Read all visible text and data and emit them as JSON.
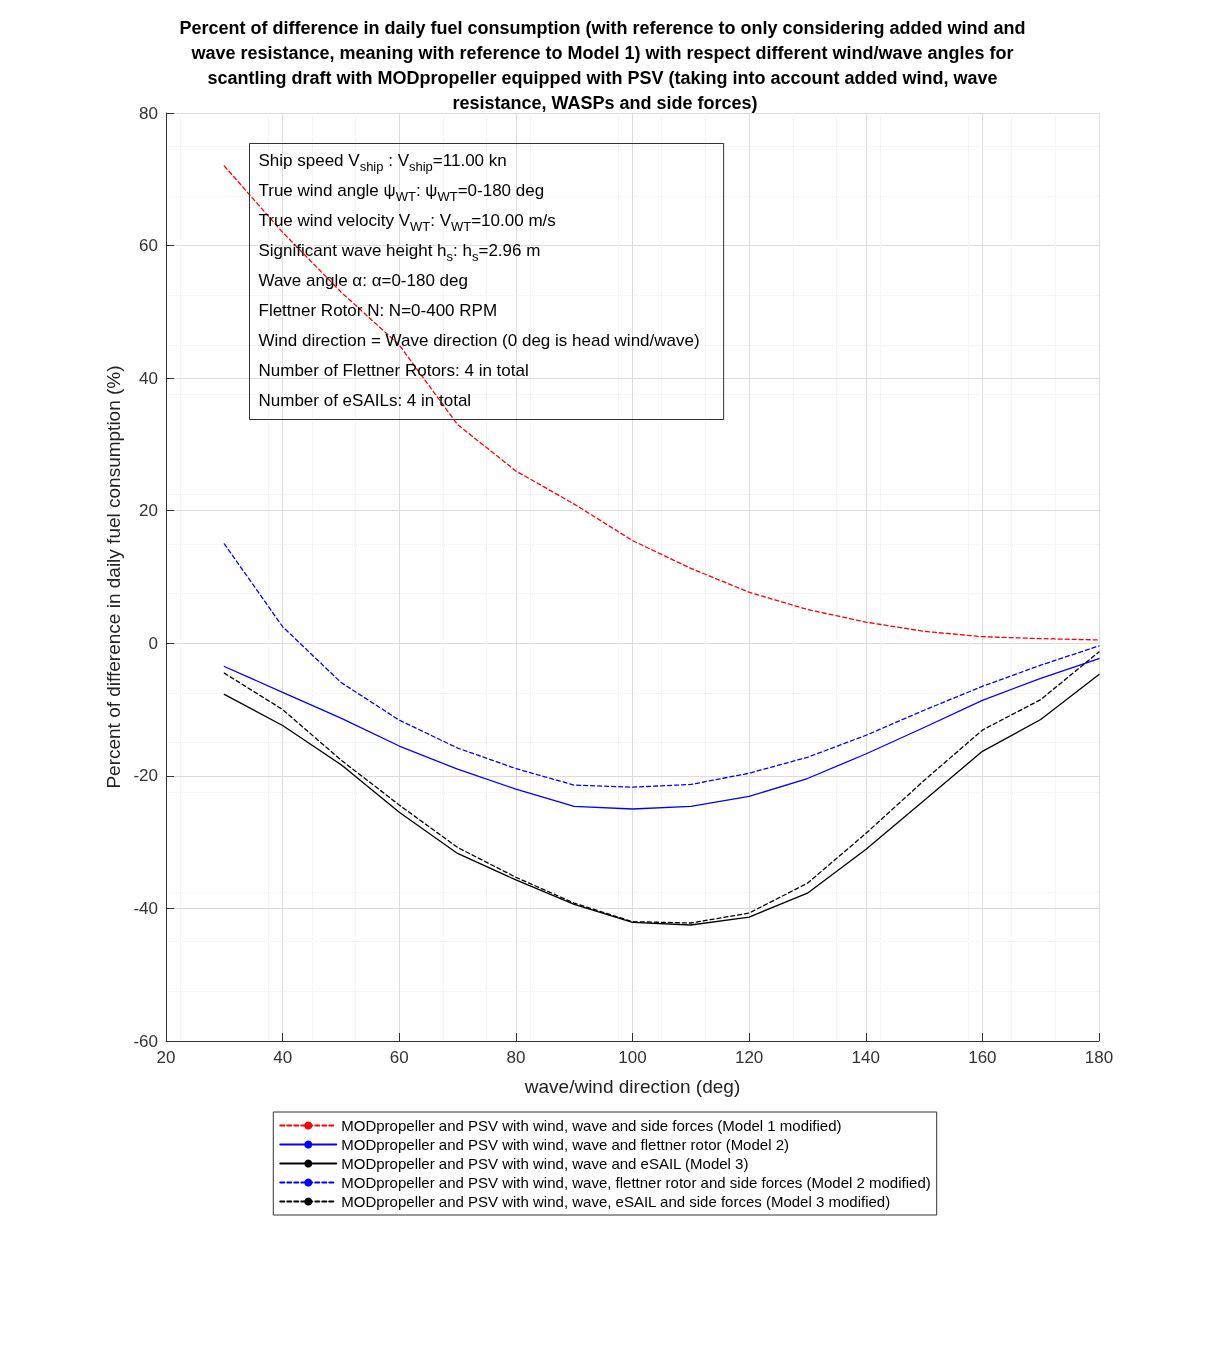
{
  "chart_data": {
    "type": "line",
    "title": "Percent of difference in daily fuel consumption (with reference to only considering added wind and wave resistance, meaning with reference to Model 1) with respect different wind/wave angles for scantling draft with MODpropeller equipped with PSV (taking into account added wind, wave resistance, WASPs and side forces)",
    "xlabel": "wave/wind direction (deg)",
    "ylabel": "Percent of difference in daily fuel consumption (%)",
    "x": [
      30,
      40,
      50,
      60,
      70,
      80,
      90,
      100,
      110,
      120,
      130,
      140,
      150,
      160,
      170,
      180
    ],
    "series": [
      {
        "name": "MODpropeller and PSV with wind, wave and side forces (Model 1 modified)",
        "color": "#ff0000",
        "line_style": "dashed",
        "values": [
          72,
          62,
          53,
          45,
          33,
          26,
          21,
          15.5,
          11.3,
          7.7,
          5.1,
          3.2,
          1.8,
          1.0,
          0.7,
          0.5
        ]
      },
      {
        "name": "MODpropeller and PSV with wind, wave and flettner rotor (Model 2)",
        "color": "#0000ff",
        "line_style": "solid",
        "values": [
          -3.5,
          -7.4,
          -11.3,
          -15.5,
          -19.0,
          -22.0,
          -24.6,
          -25.0,
          -24.6,
          -23.1,
          -20.4,
          -16.7,
          -12.7,
          -8.6,
          -5.3,
          -2.3
        ]
      },
      {
        "name": "MODpropeller and PSV with wind, wave and eSAIL (Model 3)",
        "color": "#000000",
        "line_style": "solid",
        "values": [
          -7.7,
          -12.4,
          -18.3,
          -25.5,
          -31.7,
          -35.7,
          -39.4,
          -42.1,
          -42.5,
          -41.3,
          -37.7,
          -31.1,
          -23.7,
          -16.3,
          -11.5,
          -4.7
        ]
      },
      {
        "name": "MODpropeller and PSV with wind, wave, flettner rotor and side forces (Model 2 modified)",
        "color": "#0000ff",
        "line_style": "dashed",
        "values": [
          15,
          2.5,
          -5.9,
          -11.6,
          -15.8,
          -18.9,
          -21.4,
          -21.7,
          -21.3,
          -19.6,
          -17.2,
          -13.9,
          -10.1,
          -6.5,
          -3.3,
          -0.4
        ]
      },
      {
        "name": "MODpropeller and PSV with wind, wave, eSAIL and side forces (Model 3 modified)",
        "color": "#000000",
        "line_style": "dashed",
        "values": [
          -4.5,
          -10.0,
          -17.6,
          -24.4,
          -30.8,
          -35.3,
          -39.2,
          -42.0,
          -42.2,
          -40.7,
          -36.2,
          -28.7,
          -20.7,
          -13.1,
          -8.5,
          -1.3
        ]
      }
    ],
    "annotations": [
      "Ship speed V$_{ship}$ : V$_{ship}$=11.00 kn",
      "True wind angle ψ$_{WT}$: ψ$_{WT}$=0-180 deg",
      "True wind velocity V$_{WT}$: V$_{WT}$=10.00 m/s",
      "Significant wave height h$_{s}$: h$_{s}$=2.96 m",
      "Wave angle α: α=0-180 deg",
      "Flettner Rotor N: N=0-400 RPM",
      "Wind direction = Wave direction (0 deg is head wind/wave)",
      "Number of Flettner Rotors: 4 in total",
      "Number of eSAILs: 4 in total"
    ],
    "xlim": [
      20,
      180
    ],
    "xticks": [
      20,
      40,
      60,
      80,
      100,
      120,
      140,
      160,
      180
    ],
    "ylim": [
      -60,
      80
    ],
    "yticks": [
      -60,
      -40,
      -20,
      0,
      20,
      40,
      60,
      80
    ],
    "grid": true,
    "legend": "bottom",
    "marker": "none"
  }
}
